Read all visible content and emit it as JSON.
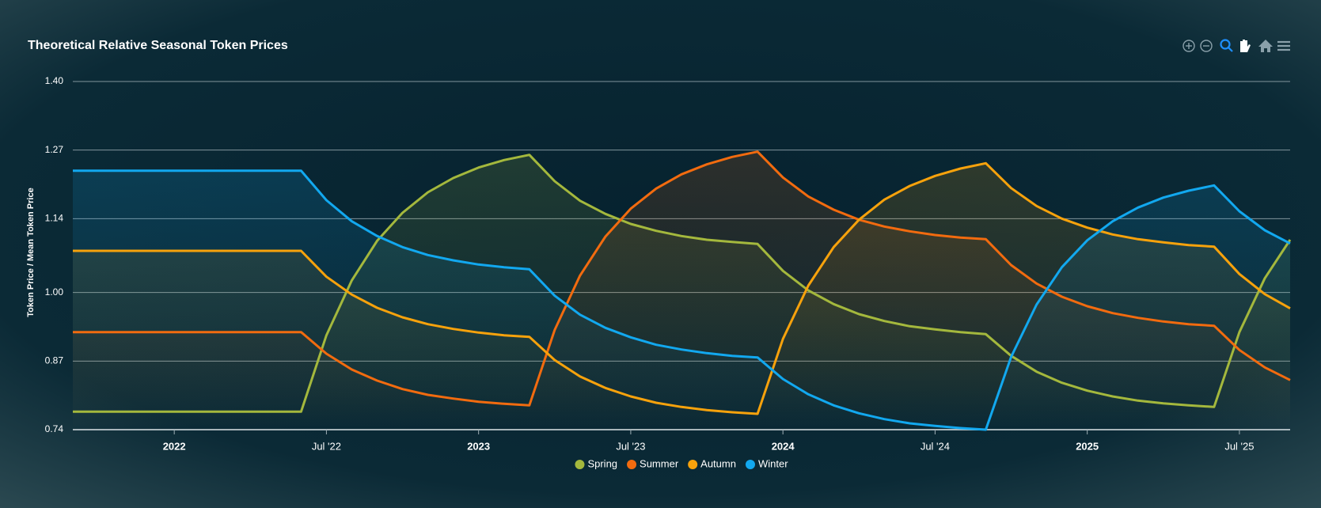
{
  "chart_data": {
    "type": "line",
    "title": "Theoretical Relative Seasonal Token Prices",
    "y_label": "Token Price / Mean Token Price",
    "x": [
      "2021-09",
      "2021-10",
      "2021-11",
      "2021-12",
      "2022-01",
      "2022-02",
      "2022-03",
      "2022-04",
      "2022-05",
      "2022-06",
      "2022-07",
      "2022-08",
      "2022-09",
      "2022-10",
      "2022-11",
      "2022-12",
      "2023-01",
      "2023-02",
      "2023-03",
      "2023-04",
      "2023-05",
      "2023-06",
      "2023-07",
      "2023-08",
      "2023-09",
      "2023-10",
      "2023-11",
      "2023-12",
      "2024-01",
      "2024-02",
      "2024-03",
      "2024-04",
      "2024-05",
      "2024-06",
      "2024-07",
      "2024-08",
      "2024-09",
      "2024-10",
      "2024-11",
      "2024-12",
      "2025-01",
      "2025-02",
      "2025-03",
      "2025-04",
      "2025-05",
      "2025-06",
      "2025-07",
      "2025-08",
      "2025-09"
    ],
    "series": [
      {
        "name": "Spring",
        "color": "#a4b83d",
        "values": [
          0.774,
          0.774,
          0.774,
          0.774,
          0.774,
          0.774,
          0.774,
          0.774,
          0.774,
          0.774,
          0.919,
          1.023,
          1.098,
          1.151,
          1.19,
          1.217,
          1.237,
          1.251,
          1.261,
          1.211,
          1.174,
          1.149,
          1.13,
          1.117,
          1.107,
          1.1,
          1.096,
          1.092,
          1.041,
          1.004,
          0.978,
          0.959,
          0.946,
          0.936,
          0.93,
          0.925,
          0.921,
          0.88,
          0.85,
          0.829,
          0.814,
          0.803,
          0.795,
          0.79,
          0.786,
          0.783,
          0.925,
          1.027,
          1.1
        ]
      },
      {
        "name": "Summer",
        "color": "#f26b0f",
        "values": [
          0.925,
          0.925,
          0.925,
          0.925,
          0.925,
          0.925,
          0.925,
          0.925,
          0.925,
          0.925,
          0.884,
          0.854,
          0.833,
          0.817,
          0.806,
          0.799,
          0.793,
          0.789,
          0.786,
          0.929,
          1.032,
          1.106,
          1.159,
          1.197,
          1.224,
          1.243,
          1.257,
          1.267,
          1.218,
          1.182,
          1.157,
          1.138,
          1.125,
          1.116,
          1.109,
          1.104,
          1.101,
          1.052,
          1.017,
          0.992,
          0.974,
          0.961,
          0.952,
          0.945,
          0.94,
          0.937,
          0.891,
          0.858,
          0.834
        ]
      },
      {
        "name": "Autumn",
        "color": "#f7a20c",
        "values": [
          1.079,
          1.079,
          1.079,
          1.079,
          1.079,
          1.079,
          1.079,
          1.079,
          1.079,
          1.079,
          1.03,
          0.996,
          0.971,
          0.953,
          0.94,
          0.931,
          0.924,
          0.919,
          0.916,
          0.872,
          0.841,
          0.819,
          0.803,
          0.791,
          0.783,
          0.777,
          0.773,
          0.77,
          0.912,
          1.013,
          1.086,
          1.138,
          1.176,
          1.202,
          1.221,
          1.235,
          1.245,
          1.198,
          1.164,
          1.14,
          1.123,
          1.11,
          1.101,
          1.095,
          1.09,
          1.087,
          1.035,
          0.997,
          0.97
        ]
      },
      {
        "name": "Winter",
        "color": "#12a8ef",
        "values": [
          1.231,
          1.231,
          1.231,
          1.231,
          1.231,
          1.231,
          1.231,
          1.231,
          1.231,
          1.231,
          1.175,
          1.135,
          1.107,
          1.086,
          1.071,
          1.061,
          1.053,
          1.048,
          1.044,
          0.994,
          0.958,
          0.933,
          0.915,
          0.901,
          0.892,
          0.885,
          0.88,
          0.877,
          0.836,
          0.807,
          0.786,
          0.771,
          0.76,
          0.752,
          0.747,
          0.743,
          0.74,
          0.878,
          0.977,
          1.048,
          1.099,
          1.135,
          1.161,
          1.18,
          1.193,
          1.203,
          1.154,
          1.118,
          1.093
        ]
      }
    ],
    "xlim": [
      "2021-09",
      "2025-09"
    ],
    "xticks": [
      {
        "value": "2022-01",
        "label": "2022"
      },
      {
        "value": "2022-07",
        "label": "Jul '22"
      },
      {
        "value": "2023-01",
        "label": "2023"
      },
      {
        "value": "2023-07",
        "label": "Jul '23"
      },
      {
        "value": "2024-01",
        "label": "2024"
      },
      {
        "value": "2024-07",
        "label": "Jul '24"
      },
      {
        "value": "2025-01",
        "label": "2025"
      },
      {
        "value": "2025-07",
        "label": "Jul '25"
      }
    ],
    "ylim": [
      0.74,
      1.4
    ],
    "yticks": [
      0.74,
      0.87,
      {
        "value": 1,
        "label": "1.00"
      },
      1.14,
      1.27,
      {
        "value": 1.4,
        "label": "1.40"
      }
    ],
    "grid": true,
    "legend": "bottom"
  }
}
